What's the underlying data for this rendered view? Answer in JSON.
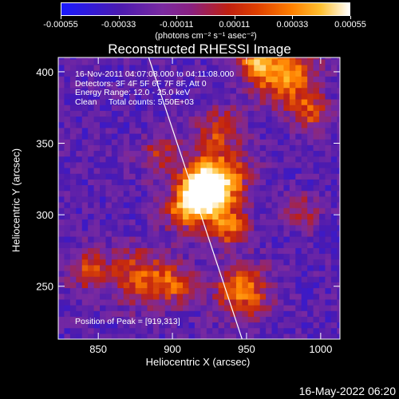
{
  "colorbar": {
    "tick_labels": [
      "-0.00055",
      "-0.00033",
      "-0.00011",
      "0.00011",
      "0.00033",
      "0.00055"
    ],
    "units": "(photons cm⁻² s⁻¹ asec⁻²)"
  },
  "chart_data": {
    "type": "heatmap",
    "title": "Reconstructed RHESSI Image",
    "xlabel": "Heliocentric X (arcsec)",
    "ylabel": "Heliocentric Y (arcsec)",
    "xlim": [
      823,
      1013
    ],
    "ylim": [
      213,
      410
    ],
    "x_ticks": [
      850,
      900,
      950,
      1000
    ],
    "y_ticks": [
      250,
      300,
      350,
      400
    ],
    "x_tick_labels": [
      "850",
      "900",
      "950",
      "1000"
    ],
    "y_tick_labels": [
      "250",
      "300",
      "350",
      "400"
    ],
    "peak": [
      919,
      313
    ],
    "colorscale": [
      "#1a1aff",
      "#4a1ab0",
      "#7a2aa0",
      "#c02010",
      "#ff8000",
      "#ffc030",
      "#ffffff"
    ],
    "limb_line": {
      "from": [
        884,
        410
      ],
      "to": [
        947,
        213
      ]
    },
    "annotations": [
      "16-Nov-2011 04:07:08.000 to 04:11:08.000",
      "Detectors: 3F 4F 5F 6F 7F 8F, Att 0",
      "Energy Range: 12.0 - 25.0 keV",
      "Clean     Total counts: 5.50E+03"
    ],
    "peak_label": "Position of Peak = [919,313]"
  },
  "timestamp": "16-May-2022 06:20"
}
